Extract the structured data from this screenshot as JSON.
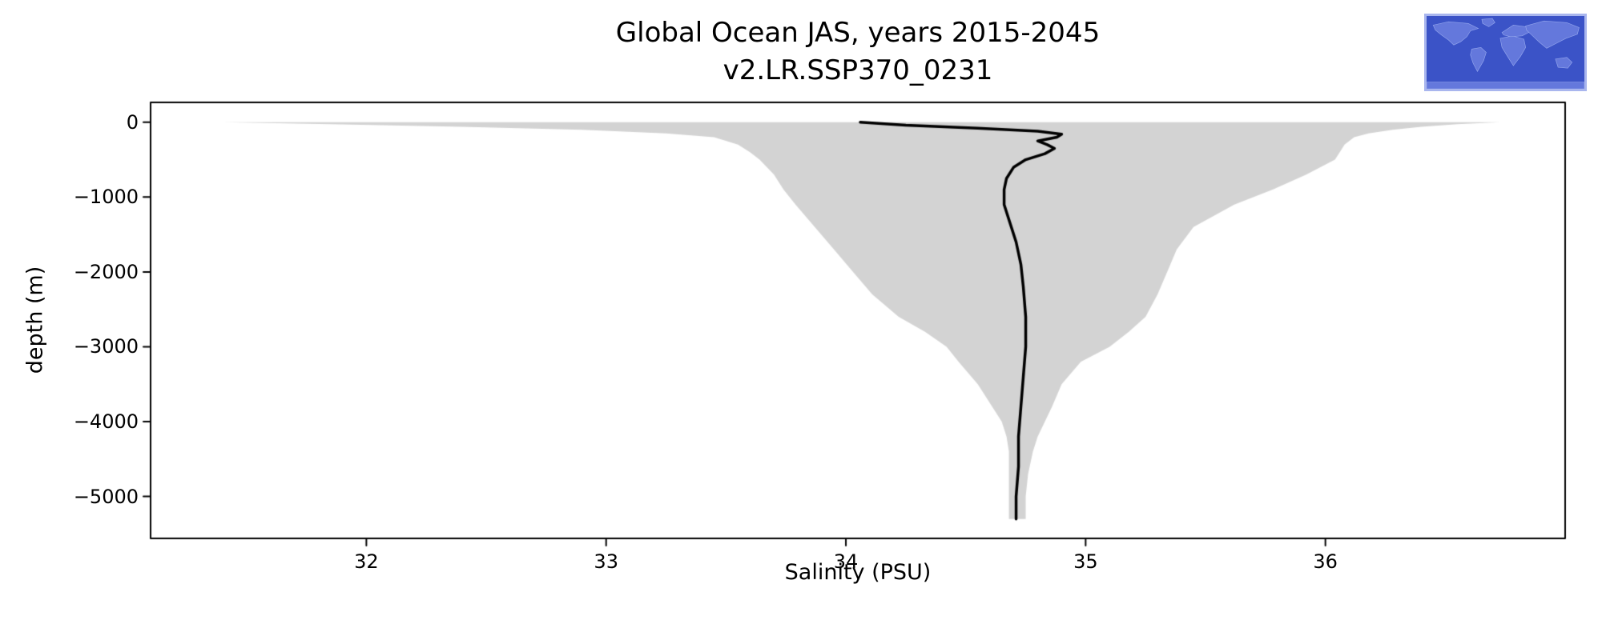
{
  "figure": {
    "title_line1": "Global Ocean JAS, years 2015-2045",
    "title_line2": "v2.LR.SSP370_0231"
  },
  "chart_data": {
    "type": "area",
    "title": "Global Ocean JAS, years 2015-2045 v2.LR.SSP370_0231",
    "xlabel": "Salinity (PSU)",
    "ylabel": "depth (m)",
    "xlim": [
      31.1,
      37.0
    ],
    "ylim": [
      -5560,
      265
    ],
    "grid": false,
    "legend": "none",
    "xticks": {
      "values": [
        32,
        33,
        34,
        35,
        36
      ],
      "labels": [
        "32",
        "33",
        "34",
        "35",
        "36"
      ]
    },
    "yticks": {
      "values": [
        0,
        -1000,
        -2000,
        -3000,
        -4000,
        -5000
      ],
      "labels": [
        "0",
        "−1000",
        "−2000",
        "−3000",
        "−4000",
        "−5000"
      ]
    },
    "envelope_fill": "#d3d3d3",
    "line_color": "#000000",
    "series": [
      {
        "name": "min-max salinity envelope",
        "depths": [
          0,
          -25,
          -60,
          -100,
          -150,
          -200,
          -300,
          -400,
          -500,
          -700,
          -900,
          -1100,
          -1400,
          -1700,
          -2000,
          -2300,
          -2600,
          -2800,
          -3000,
          -3200,
          -3500,
          -3800,
          -4000,
          -4200,
          -4400,
          -4700,
          -5000,
          -5300
        ],
        "min": [
          31.4,
          31.85,
          32.4,
          32.9,
          33.25,
          33.45,
          33.55,
          33.6,
          33.64,
          33.7,
          33.74,
          33.79,
          33.87,
          33.95,
          34.03,
          34.11,
          34.22,
          34.33,
          34.42,
          34.47,
          34.55,
          34.61,
          34.65,
          34.67,
          34.68,
          34.68,
          34.68,
          34.68
        ],
        "max": [
          36.73,
          36.55,
          36.4,
          36.28,
          36.18,
          36.12,
          36.08,
          36.06,
          36.04,
          35.92,
          35.78,
          35.62,
          35.45,
          35.38,
          35.34,
          35.3,
          35.25,
          35.18,
          35.1,
          34.98,
          34.9,
          34.86,
          34.83,
          34.8,
          34.78,
          34.76,
          34.75,
          34.75
        ]
      },
      {
        "name": "mean salinity profile",
        "depths": [
          0,
          -40,
          -80,
          -120,
          -160,
          -200,
          -250,
          -300,
          -350,
          -420,
          -500,
          -600,
          -750,
          -900,
          -1100,
          -1300,
          -1600,
          -1900,
          -2200,
          -2600,
          -3000,
          -3400,
          -3800,
          -4200,
          -4600,
          -5000,
          -5300
        ],
        "salinity": [
          34.06,
          34.25,
          34.55,
          34.8,
          34.9,
          34.88,
          34.8,
          34.84,
          34.87,
          34.83,
          34.75,
          34.7,
          34.67,
          34.66,
          34.66,
          34.68,
          34.71,
          34.73,
          34.74,
          34.75,
          34.75,
          34.74,
          34.73,
          34.72,
          34.72,
          34.71,
          34.71
        ]
      }
    ]
  },
  "inset_map": {
    "name": "global ocean region map",
    "ocean_color": "#3b53c7",
    "land_color": "#6478dc",
    "coast_color": "#93a5ec",
    "border_color": "#a9b6ee"
  }
}
